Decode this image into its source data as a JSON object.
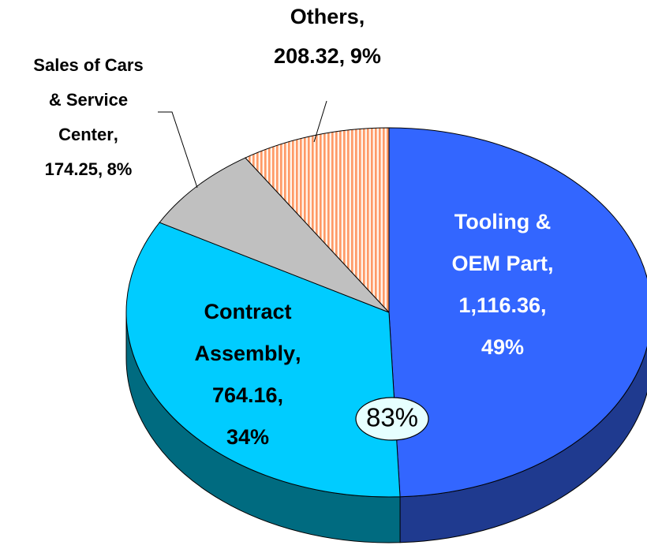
{
  "chart_data": {
    "type": "pie3d",
    "categories": [
      "Tooling & OEM Part",
      "Contract Assembly",
      "Sales of Cars & Service Center",
      "Others"
    ],
    "values": [
      1116.36,
      764.16,
      174.25,
      208.32
    ],
    "value_labels": [
      "1,116.36",
      "764.16",
      "174.25",
      "208.32"
    ],
    "percent_labels": [
      "49%",
      "34%",
      "8%",
      "9%"
    ],
    "label_separator": ",",
    "colors": [
      "#3366ff",
      "#00ccff",
      "#c0c0c0",
      "#ff9966"
    ],
    "side_colors": [
      "#1f3a8f",
      "#006b80",
      "#8c8c8c",
      "#b36b47"
    ],
    "hatched": [
      false,
      false,
      false,
      true
    ],
    "annotation": "83%"
  }
}
